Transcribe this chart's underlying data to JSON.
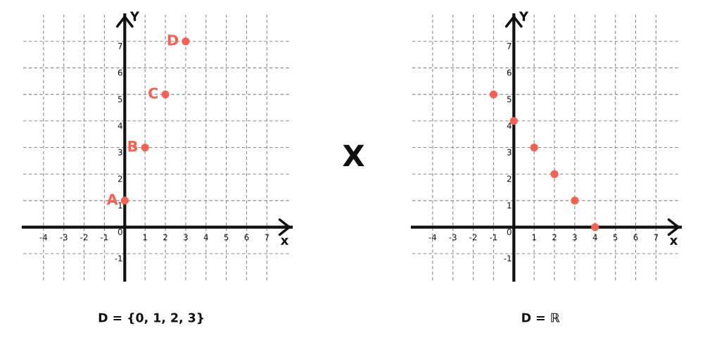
{
  "chart_data": [
    {
      "type": "scatter",
      "xlabel": "x",
      "ylabel": "Y",
      "x": [
        0,
        1,
        2,
        3
      ],
      "values": [
        1,
        3,
        5,
        7
      ],
      "color": "#f86152",
      "marker": "circle",
      "xlim": [
        -5,
        8.2
      ],
      "ylim": [
        -2,
        8
      ],
      "xticks": [
        -4,
        -3,
        -2,
        -1,
        1,
        2,
        3,
        4,
        5,
        6,
        7
      ],
      "yticks": [
        -1,
        0,
        1,
        2,
        3,
        4,
        5,
        6,
        7
      ],
      "grid": true,
      "annotations": [
        {
          "text": "A",
          "x": 0,
          "y": 1
        },
        {
          "text": "B",
          "x": 1,
          "y": 3
        },
        {
          "text": "C",
          "x": 2,
          "y": 5
        },
        {
          "text": "D",
          "x": 3,
          "y": 7
        },
        "D = {0, 1, 2, 3}"
      ]
    },
    {
      "type": "other",
      "annotations": [
        "X"
      ]
    },
    {
      "type": "scatter",
      "xlabel": "x",
      "ylabel": "Y",
      "x": [
        -1,
        0,
        1,
        2,
        3,
        4
      ],
      "values": [
        5,
        4,
        3,
        2,
        1,
        0
      ],
      "color": "#f86152",
      "marker": "circle",
      "xlim": [
        -5,
        8.2
      ],
      "ylim": [
        -2,
        8
      ],
      "xticks": [
        -4,
        -3,
        -2,
        -1,
        1,
        2,
        3,
        4,
        5,
        6,
        7
      ],
      "yticks": [
        -1,
        0,
        1,
        2,
        3,
        4,
        5,
        6,
        7
      ],
      "grid": true,
      "annotations": [
        "D = ℝ"
      ]
    }
  ]
}
